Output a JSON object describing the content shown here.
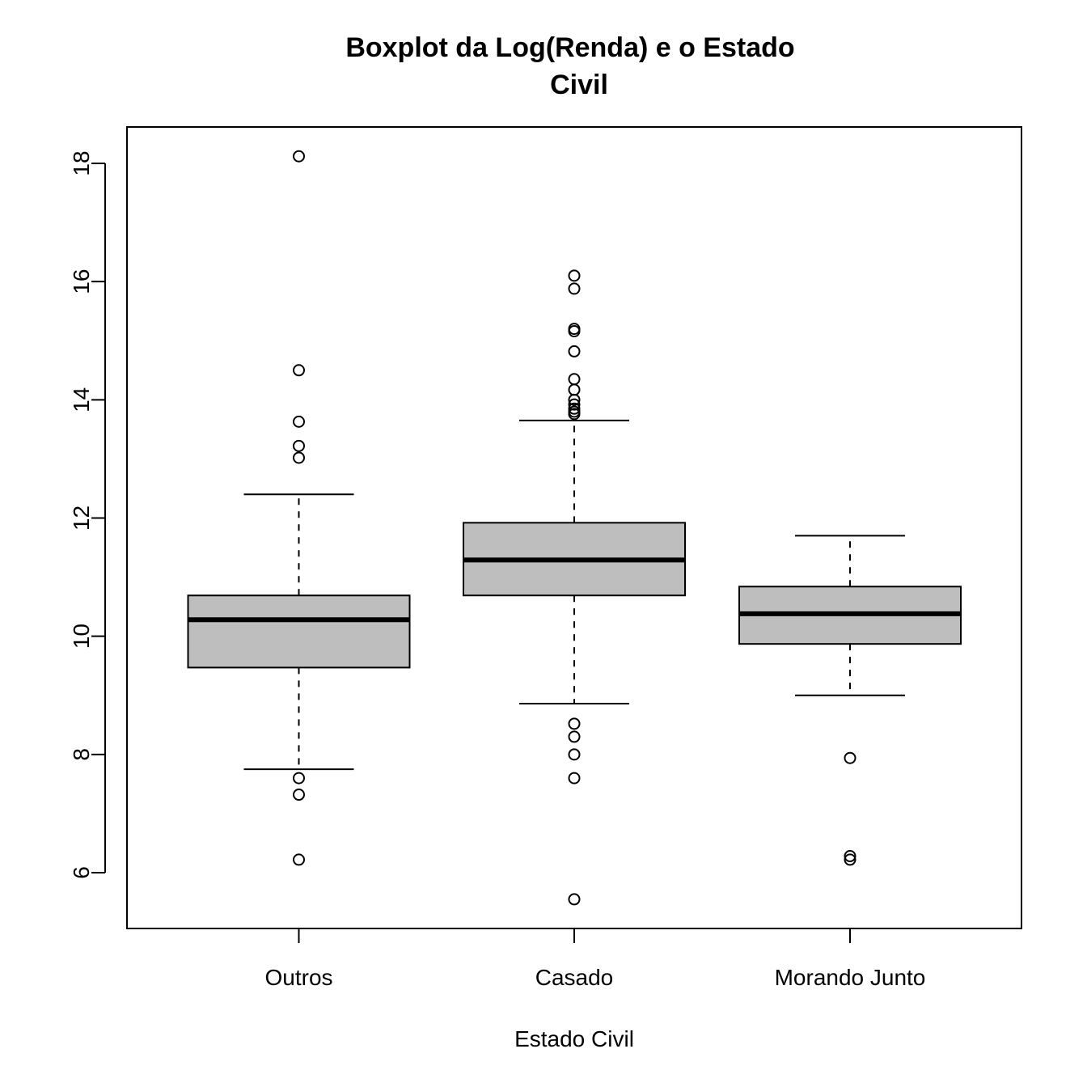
{
  "chart_data": {
    "type": "boxplot",
    "title_lines": [
      "Boxplot da Log(Renda) e o Estado",
      "Civil"
    ],
    "xlabel": "Estado Civil",
    "ylabel": "",
    "ylim": [
      5.1,
      18.7
    ],
    "yticks": [
      6,
      8,
      10,
      12,
      14,
      16,
      18
    ],
    "box_fill": "#bebebe",
    "categories": [
      "Outros",
      "Casado",
      "Morando Junto"
    ],
    "boxes": [
      {
        "category": "Outros",
        "whisker_low": 7.75,
        "q1": 9.47,
        "median": 10.28,
        "q3": 10.69,
        "whisker_high": 12.4,
        "outliers": [
          18.12,
          14.5,
          13.63,
          13.22,
          13.02,
          7.6,
          7.32,
          6.22
        ]
      },
      {
        "category": "Casado",
        "whisker_low": 8.86,
        "q1": 10.69,
        "median": 11.29,
        "q3": 11.92,
        "whisker_high": 13.65,
        "outliers": [
          16.1,
          15.88,
          15.2,
          15.16,
          14.82,
          14.35,
          14.17,
          14.0,
          13.92,
          13.85,
          13.8,
          13.76,
          8.52,
          8.3,
          8.0,
          7.6,
          5.55
        ]
      },
      {
        "category": "Morando Junto",
        "whisker_low": 9.0,
        "q1": 9.87,
        "median": 10.38,
        "q3": 10.84,
        "whisker_high": 11.7,
        "outliers": [
          7.94,
          6.28,
          6.22
        ]
      }
    ]
  }
}
